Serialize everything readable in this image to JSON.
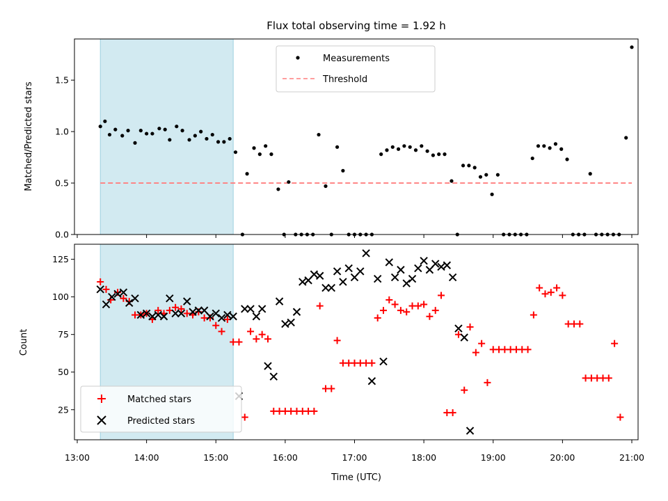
{
  "chart_data": [
    {
      "panel": "top",
      "type": "scatter",
      "title": "Flux total observing time = 1.92 h",
      "xlabel": "",
      "ylabel": "Matched/Predicted stars",
      "ylim": [
        0,
        1.9
      ],
      "y_ticks": [
        "0.0",
        "0.5",
        "1.0",
        "1.5"
      ],
      "shaded_time_range": [
        "13:20",
        "15:15"
      ],
      "shade_color": "#add8e6",
      "legend_position": "upper center",
      "series": [
        {
          "name": "Measurements",
          "marker": "dot",
          "color": "#000000",
          "points": [
            [
              "13:20",
              1.05
            ],
            [
              "13:24",
              1.1
            ],
            [
              "13:28",
              0.97
            ],
            [
              "13:33",
              1.02
            ],
            [
              "13:39",
              0.96
            ],
            [
              "13:44",
              1.01
            ],
            [
              "13:50",
              0.89
            ],
            [
              "13:55",
              1.01
            ],
            [
              "14:00",
              0.98
            ],
            [
              "14:05",
              0.98
            ],
            [
              "14:11",
              1.03
            ],
            [
              "14:16",
              1.02
            ],
            [
              "14:20",
              0.92
            ],
            [
              "14:26",
              1.05
            ],
            [
              "14:31",
              1.01
            ],
            [
              "14:37",
              0.92
            ],
            [
              "14:42",
              0.96
            ],
            [
              "14:47",
              1.0
            ],
            [
              "14:52",
              0.93
            ],
            [
              "14:57",
              0.97
            ],
            [
              "15:02",
              0.9
            ],
            [
              "15:07",
              0.9
            ],
            [
              "15:12",
              0.93
            ],
            [
              "15:17",
              0.8
            ],
            [
              "15:23",
              0.0
            ],
            [
              "15:27",
              0.59
            ],
            [
              "15:33",
              0.84
            ],
            [
              "15:38",
              0.78
            ],
            [
              "15:43",
              0.86
            ],
            [
              "15:48",
              0.78
            ],
            [
              "15:54",
              0.44
            ],
            [
              "15:59",
              0.0
            ],
            [
              "16:03",
              0.51
            ],
            [
              "16:09",
              0.0
            ],
            [
              "16:14",
              0.0
            ],
            [
              "16:19",
              0.0
            ],
            [
              "16:24",
              0.0
            ],
            [
              "16:29",
              0.97
            ],
            [
              "16:35",
              0.47
            ],
            [
              "16:40",
              0.0
            ],
            [
              "16:45",
              0.85
            ],
            [
              "16:50",
              0.62
            ],
            [
              "16:55",
              0.0
            ],
            [
              "17:00",
              0.0
            ],
            [
              "17:05",
              0.0
            ],
            [
              "17:10",
              0.0
            ],
            [
              "17:15",
              0.0
            ],
            [
              "17:23",
              0.78
            ],
            [
              "17:28",
              0.82
            ],
            [
              "17:33",
              0.85
            ],
            [
              "17:38",
              0.83
            ],
            [
              "17:43",
              0.86
            ],
            [
              "17:48",
              0.85
            ],
            [
              "17:53",
              0.82
            ],
            [
              "17:58",
              0.86
            ],
            [
              "18:03",
              0.81
            ],
            [
              "18:08",
              0.77
            ],
            [
              "18:13",
              0.78
            ],
            [
              "18:18",
              0.78
            ],
            [
              "18:24",
              0.52
            ],
            [
              "18:29",
              0.0
            ],
            [
              "18:34",
              0.67
            ],
            [
              "18:39",
              0.67
            ],
            [
              "18:44",
              0.65
            ],
            [
              "18:49",
              0.56
            ],
            [
              "18:54",
              0.58
            ],
            [
              "18:59",
              0.39
            ],
            [
              "19:04",
              0.58
            ],
            [
              "19:09",
              0.0
            ],
            [
              "19:14",
              0.0
            ],
            [
              "19:19",
              0.0
            ],
            [
              "19:24",
              0.0
            ],
            [
              "19:29",
              0.0
            ],
            [
              "19:34",
              0.74
            ],
            [
              "19:39",
              0.86
            ],
            [
              "19:44",
              0.86
            ],
            [
              "19:49",
              0.84
            ],
            [
              "19:54",
              0.88
            ],
            [
              "19:59",
              0.83
            ],
            [
              "20:04",
              0.73
            ],
            [
              "20:09",
              0.0
            ],
            [
              "20:14",
              0.0
            ],
            [
              "20:19",
              0.0
            ],
            [
              "20:24",
              0.59
            ],
            [
              "20:29",
              0.0
            ],
            [
              "20:34",
              0.0
            ],
            [
              "20:39",
              0.0
            ],
            [
              "20:44",
              0.0
            ],
            [
              "20:49",
              0.0
            ],
            [
              "20:55",
              0.94
            ],
            [
              "21:00",
              1.82
            ]
          ]
        },
        {
          "name": "Threshold",
          "marker": "dashed-line",
          "color": "#ff7f7f",
          "points": [
            [
              "13:20",
              0.5
            ],
            [
              "21:00",
              0.5
            ]
          ]
        }
      ]
    },
    {
      "panel": "bottom",
      "type": "scatter",
      "title": "",
      "xlabel": "Time (UTC)",
      "ylabel": "Count",
      "ylim": [
        5,
        135
      ],
      "y_ticks": [
        "25",
        "50",
        "75",
        "100",
        "125"
      ],
      "x_ticks": [
        "13:00",
        "14:00",
        "15:00",
        "16:00",
        "17:00",
        "18:00",
        "19:00",
        "20:00",
        "21:00"
      ],
      "shaded_time_range": [
        "13:20",
        "15:15"
      ],
      "shade_color": "#add8e6",
      "legend_position": "lower left",
      "series": [
        {
          "name": "Matched stars",
          "marker": "plus",
          "color": "#ff0000",
          "points": [
            [
              "13:20",
              110
            ],
            [
              "13:25",
              105
            ],
            [
              "13:29",
              98
            ],
            [
              "13:35",
              103
            ],
            [
              "13:40",
              99
            ],
            [
              "13:45",
              97
            ],
            [
              "13:50",
              88
            ],
            [
              "13:55",
              88
            ],
            [
              "14:00",
              89
            ],
            [
              "14:05",
              85
            ],
            [
              "14:10",
              91
            ],
            [
              "14:15",
              89
            ],
            [
              "14:20",
              91
            ],
            [
              "14:25",
              93
            ],
            [
              "14:30",
              92
            ],
            [
              "14:35",
              89
            ],
            [
              "14:40",
              88
            ],
            [
              "14:45",
              90
            ],
            [
              "14:50",
              86
            ],
            [
              "14:55",
              86
            ],
            [
              "15:00",
              81
            ],
            [
              "15:05",
              77
            ],
            [
              "15:10",
              85
            ],
            [
              "15:15",
              70
            ],
            [
              "15:20",
              70
            ],
            [
              "15:25",
              20
            ],
            [
              "15:30",
              77
            ],
            [
              "15:35",
              72
            ],
            [
              "15:40",
              75
            ],
            [
              "15:45",
              72
            ],
            [
              "15:50",
              24
            ],
            [
              "15:55",
              24
            ],
            [
              "16:00",
              24
            ],
            [
              "16:05",
              24
            ],
            [
              "16:10",
              24
            ],
            [
              "16:15",
              24
            ],
            [
              "16:20",
              24
            ],
            [
              "16:25",
              24
            ],
            [
              "16:30",
              94
            ],
            [
              "16:35",
              39
            ],
            [
              "16:40",
              39
            ],
            [
              "16:45",
              71
            ],
            [
              "16:50",
              56
            ],
            [
              "16:55",
              56
            ],
            [
              "17:00",
              56
            ],
            [
              "17:05",
              56
            ],
            [
              "17:10",
              56
            ],
            [
              "17:15",
              56
            ],
            [
              "17:20",
              86
            ],
            [
              "17:25",
              91
            ],
            [
              "17:30",
              98
            ],
            [
              "17:35",
              95
            ],
            [
              "17:40",
              91
            ],
            [
              "17:45",
              90
            ],
            [
              "17:50",
              94
            ],
            [
              "17:55",
              94
            ],
            [
              "18:00",
              95
            ],
            [
              "18:05",
              87
            ],
            [
              "18:10",
              91
            ],
            [
              "18:15",
              101
            ],
            [
              "18:20",
              23
            ],
            [
              "18:25",
              23
            ],
            [
              "18:30",
              75
            ],
            [
              "18:35",
              38
            ],
            [
              "18:40",
              80
            ],
            [
              "18:45",
              63
            ],
            [
              "18:50",
              69
            ],
            [
              "18:55",
              43
            ],
            [
              "19:00",
              65
            ],
            [
              "19:05",
              65
            ],
            [
              "19:10",
              65
            ],
            [
              "19:15",
              65
            ],
            [
              "19:20",
              65
            ],
            [
              "19:25",
              65
            ],
            [
              "19:30",
              65
            ],
            [
              "19:35",
              88
            ],
            [
              "19:40",
              106
            ],
            [
              "19:45",
              102
            ],
            [
              "19:50",
              103
            ],
            [
              "19:55",
              106
            ],
            [
              "20:00",
              101
            ],
            [
              "20:05",
              82
            ],
            [
              "20:10",
              82
            ],
            [
              "20:15",
              82
            ],
            [
              "20:20",
              46
            ],
            [
              "20:25",
              46
            ],
            [
              "20:30",
              46
            ],
            [
              "20:35",
              46
            ],
            [
              "20:40",
              46
            ],
            [
              "20:45",
              69
            ],
            [
              "20:50",
              20
            ]
          ]
        },
        {
          "name": "Predicted stars",
          "marker": "x",
          "color": "#000000",
          "points": [
            [
              "13:20",
              105
            ],
            [
              "13:25",
              95
            ],
            [
              "13:30",
              100
            ],
            [
              "13:35",
              102
            ],
            [
              "13:40",
              103
            ],
            [
              "13:45",
              96
            ],
            [
              "13:50",
              99
            ],
            [
              "13:55",
              88
            ],
            [
              "14:00",
              89
            ],
            [
              "14:05",
              87
            ],
            [
              "14:10",
              88
            ],
            [
              "14:15",
              87
            ],
            [
              "14:20",
              99
            ],
            [
              "14:25",
              89
            ],
            [
              "14:30",
              89
            ],
            [
              "14:35",
              97
            ],
            [
              "14:40",
              90
            ],
            [
              "14:45",
              91
            ],
            [
              "14:50",
              91
            ],
            [
              "14:55",
              87
            ],
            [
              "15:00",
              89
            ],
            [
              "15:05",
              86
            ],
            [
              "15:10",
              88
            ],
            [
              "15:15",
              87
            ],
            [
              "15:20",
              34
            ],
            [
              "15:25",
              92
            ],
            [
              "15:30",
              92
            ],
            [
              "15:35",
              87
            ],
            [
              "15:40",
              92
            ],
            [
              "15:45",
              54
            ],
            [
              "15:50",
              47
            ],
            [
              "15:55",
              97
            ],
            [
              "16:00",
              82
            ],
            [
              "16:05",
              83
            ],
            [
              "16:10",
              90
            ],
            [
              "16:15",
              110
            ],
            [
              "16:20",
              111
            ],
            [
              "16:25",
              115
            ],
            [
              "16:30",
              114
            ],
            [
              "16:35",
              106
            ],
            [
              "16:40",
              106
            ],
            [
              "16:45",
              117
            ],
            [
              "16:50",
              110
            ],
            [
              "16:55",
              119
            ],
            [
              "17:00",
              113
            ],
            [
              "17:05",
              117
            ],
            [
              "17:10",
              129
            ],
            [
              "17:15",
              44
            ],
            [
              "17:20",
              112
            ],
            [
              "17:25",
              57
            ],
            [
              "17:30",
              123
            ],
            [
              "17:35",
              113
            ],
            [
              "17:40",
              118
            ],
            [
              "17:45",
              109
            ],
            [
              "17:50",
              112
            ],
            [
              "17:55",
              119
            ],
            [
              "18:00",
              124
            ],
            [
              "18:05",
              118
            ],
            [
              "18:10",
              122
            ],
            [
              "18:15",
              120
            ],
            [
              "18:20",
              121
            ],
            [
              "18:25",
              113
            ],
            [
              "18:30",
              79
            ],
            [
              "18:35",
              73
            ],
            [
              "18:40",
              11
            ]
          ]
        }
      ]
    }
  ]
}
